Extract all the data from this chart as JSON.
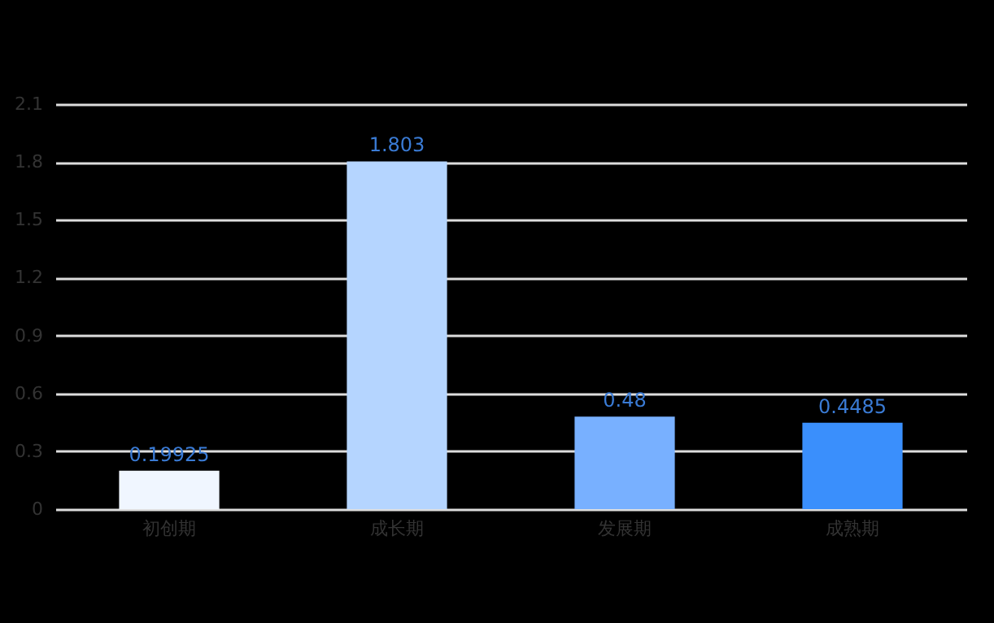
{
  "chart_data": {
    "type": "bar",
    "categories": [
      "初创期",
      "成长期",
      "发展期",
      "成熟期"
    ],
    "values": [
      0.19925,
      1.803,
      0.48,
      0.4485
    ],
    "colors": [
      "#f0f6ff",
      "#b5d5ff",
      "#78b0ff",
      "#3a8ffc"
    ],
    "ylim": [
      0,
      2.1
    ],
    "yticks": [
      0,
      0.3,
      0.6,
      0.9,
      1.2,
      1.5,
      1.8,
      2.1
    ],
    "grid": "y",
    "data_labels": true
  }
}
